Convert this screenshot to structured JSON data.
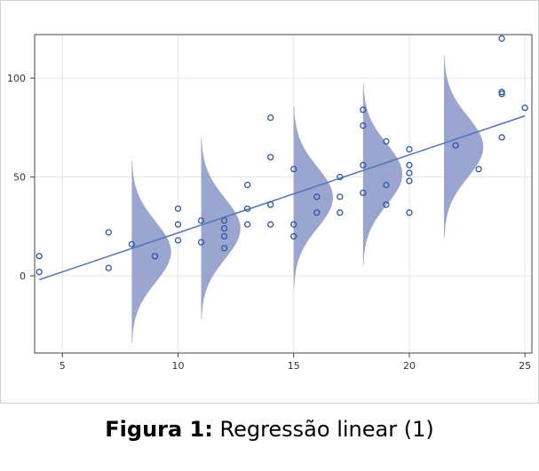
{
  "chart_data": {
    "type": "scatter",
    "title": "",
    "xlabel": "",
    "ylabel": "",
    "xlim": [
      3.8,
      25.3
    ],
    "ylim": [
      -39,
      122
    ],
    "xticks": [
      5,
      10,
      15,
      20,
      25
    ],
    "yticks": [
      0,
      50,
      100
    ],
    "grid": true,
    "points": [
      {
        "x": 4,
        "y": 10
      },
      {
        "x": 4,
        "y": 2
      },
      {
        "x": 7,
        "y": 22
      },
      {
        "x": 7,
        "y": 4
      },
      {
        "x": 8,
        "y": 16
      },
      {
        "x": 9,
        "y": 10
      },
      {
        "x": 10,
        "y": 34
      },
      {
        "x": 10,
        "y": 26
      },
      {
        "x": 10,
        "y": 18
      },
      {
        "x": 11,
        "y": 28
      },
      {
        "x": 11,
        "y": 17
      },
      {
        "x": 12,
        "y": 28
      },
      {
        "x": 12,
        "y": 24
      },
      {
        "x": 12,
        "y": 20
      },
      {
        "x": 12,
        "y": 14
      },
      {
        "x": 13,
        "y": 46
      },
      {
        "x": 13,
        "y": 34
      },
      {
        "x": 13,
        "y": 26
      },
      {
        "x": 14,
        "y": 80
      },
      {
        "x": 14,
        "y": 60
      },
      {
        "x": 14,
        "y": 36
      },
      {
        "x": 14,
        "y": 26
      },
      {
        "x": 15,
        "y": 54
      },
      {
        "x": 15,
        "y": 26
      },
      {
        "x": 15,
        "y": 20
      },
      {
        "x": 16,
        "y": 40
      },
      {
        "x": 16,
        "y": 32
      },
      {
        "x": 17,
        "y": 50
      },
      {
        "x": 17,
        "y": 40
      },
      {
        "x": 17,
        "y": 32
      },
      {
        "x": 18,
        "y": 84
      },
      {
        "x": 18,
        "y": 76
      },
      {
        "x": 18,
        "y": 56
      },
      {
        "x": 18,
        "y": 42
      },
      {
        "x": 19,
        "y": 68
      },
      {
        "x": 19,
        "y": 46
      },
      {
        "x": 19,
        "y": 36
      },
      {
        "x": 20,
        "y": 64
      },
      {
        "x": 20,
        "y": 56
      },
      {
        "x": 20,
        "y": 52
      },
      {
        "x": 20,
        "y": 48
      },
      {
        "x": 20,
        "y": 32
      },
      {
        "x": 22,
        "y": 66
      },
      {
        "x": 23,
        "y": 54
      },
      {
        "x": 24,
        "y": 120
      },
      {
        "x": 24,
        "y": 93
      },
      {
        "x": 24,
        "y": 92
      },
      {
        "x": 24,
        "y": 70
      },
      {
        "x": 25,
        "y": 85
      }
    ],
    "regression_line": {
      "x": [
        4,
        25
      ],
      "y": [
        -1.9,
        80.9
      ]
    },
    "density_curves": [
      {
        "x_base": 8,
        "y_center": 12.1,
        "sd": 15.4
      },
      {
        "x_base": 11,
        "y_center": 23.9,
        "sd": 15.4
      },
      {
        "x_base": 15,
        "y_center": 39.6,
        "sd": 15.4
      },
      {
        "x_base": 18,
        "y_center": 51.4,
        "sd": 15.4
      },
      {
        "x_base": 21.5,
        "y_center": 65.2,
        "sd": 15.4
      }
    ],
    "colors": {
      "points": "#2f55a4",
      "line": "#4f73b8",
      "density_fill": "#8a96c8",
      "grid": "#e6e6e6",
      "axis": "#444444"
    }
  },
  "caption": {
    "label": "Figura 1:",
    "text": " Regressão linear (1)"
  }
}
